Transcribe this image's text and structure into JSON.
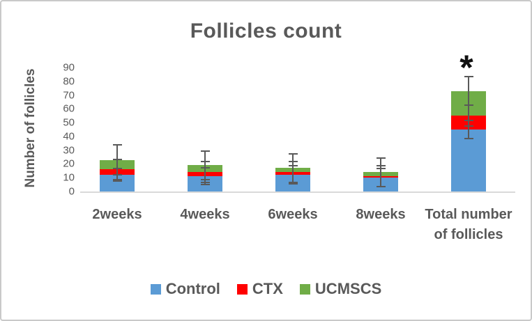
{
  "chart_data": {
    "type": "stacked-bar",
    "title": "Follicles count",
    "ylabel": "Number of follicles",
    "xlabel": "",
    "ylim": [
      0,
      90
    ],
    "yticks": [
      0,
      10,
      20,
      30,
      40,
      50,
      60,
      70,
      80,
      90
    ],
    "grid": false,
    "legend_position": "bottom",
    "categories": [
      "2weeks",
      "4weeks",
      "6weeks",
      "8weeks",
      "Total number of follicles"
    ],
    "series": [
      {
        "name": "Control",
        "color": "#5b9bd5",
        "values": [
          12,
          11,
          12,
          10,
          45
        ],
        "error": [
          5,
          6.5,
          7,
          7,
          7
        ]
      },
      {
        "name": "CTX",
        "color": "#ff0000",
        "values": [
          4,
          3,
          2,
          1,
          10
        ],
        "error": [
          8,
          8,
          8,
          8,
          8
        ]
      },
      {
        "name": "UCMSCS",
        "color": "#70ad47",
        "values": [
          7,
          5,
          3,
          3,
          18
        ],
        "error": [
          11.5,
          11,
          11,
          11,
          11
        ]
      }
    ],
    "stacked_totals": [
      23,
      19,
      17,
      14,
      73
    ],
    "annotations": [
      {
        "text": "*",
        "category_index": 4,
        "y": 90
      }
    ],
    "colors": {
      "text": "#595959",
      "axis_line": "#d9d9d9",
      "error_bar": "#595959",
      "annotation": "#111111",
      "frame_border": "#c9c9c9",
      "background": "#ffffff"
    }
  }
}
